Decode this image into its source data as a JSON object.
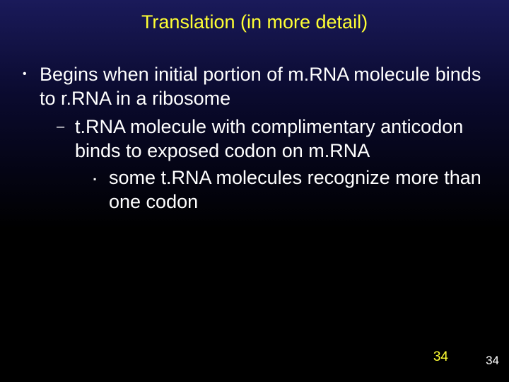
{
  "slide": {
    "title": "Translation (in more detail)",
    "bullets": {
      "l1_text": "Begins when initial portion of m.RNA molecule binds to r.RNA in a ribosome",
      "l2_text": "t.RNA molecule with complimentary anticodon binds to exposed codon on m.RNA",
      "l3_text": "some t.RNA molecules recognize more than one codon"
    },
    "page_number_inner": "34",
    "page_number_outer": "34"
  },
  "style": {
    "background_gradient_top": "#1a1a5a",
    "background_gradient_bottom": "#000000",
    "title_color": "#ffff33",
    "body_color": "#ffffff",
    "pagenum_inner_color": "#ffff33",
    "pagenum_outer_color": "#ffffff",
    "title_fontsize": 27,
    "body_fontsize": 27,
    "bullet_l1_glyph": "•",
    "bullet_l2_glyph": "–",
    "bullet_l3_glyph": "▪"
  }
}
